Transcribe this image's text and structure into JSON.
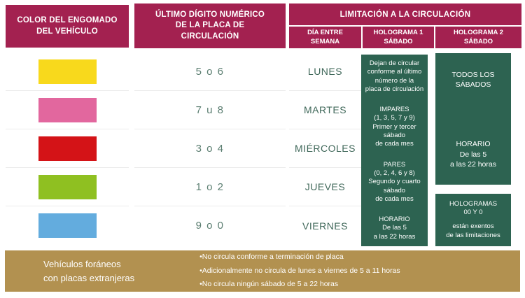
{
  "colors": {
    "header_maroon": "#A32150",
    "block_green": "#2D6351",
    "footer_tan": "#B29150",
    "digits_text": "#5B7E71",
    "day_text": "#40685A",
    "row_divider": "#ECECEC"
  },
  "header": {
    "col1_title": "COLOR DEL ENGOMADO\nDEL VEHÍCULO",
    "col2_title": "ÚLTIMO DÍGITO NUMÉRICO\nDE LA PLACA DE\nCIRCULACIÓN",
    "limitacion": {
      "title": "LIMITACIÓN A LA CIRCULACIÓN",
      "subcols": [
        "DÍA ENTRE\nSEMANA",
        "HOLOGRAMA 1\nSÁBADO",
        "HOLOGRAMA 2\nSÁBADO"
      ]
    }
  },
  "rows": [
    {
      "sticker_color": "amarillo",
      "hex": "#F8D91C",
      "digits": "5 o 6",
      "day": "LUNES"
    },
    {
      "sticker_color": "rosa",
      "hex": "#E2679E",
      "digits": "7 u 8",
      "day": "MARTES"
    },
    {
      "sticker_color": "rojo",
      "hex": "#D41317",
      "digits": "3 o 4",
      "day": "MIÉRCOLES"
    },
    {
      "sticker_color": "verde",
      "hex": "#8FC021",
      "digits": "1 o 2",
      "day": "JUEVES"
    },
    {
      "sticker_color": "azul",
      "hex": "#63ACDE",
      "digits": "9 o 0",
      "day": "VIERNES"
    }
  ],
  "hologram1": {
    "p1": "Dejan de circular\nconforme al último\nnúmero de la\nplaca de circulación",
    "p2": "IMPARES\n(1, 3, 5, 7 y 9)\nPrimer y tercer\nsábado\nde cada mes",
    "p3": "PARES\n(0, 2, 4, 6 y 8)\nSegundo y cuarto\nsábado\nde cada mes",
    "p4": "HORARIO\nDe las 5\na las 22 horas"
  },
  "hologram2": {
    "block1_top": "TODOS LOS\nSÁBADOS",
    "block1_bottom": "HORARIO\nDe las 5\na las 22 horas",
    "block2_top": "HOLOGRAMAS\n00 Y 0",
    "block2_bottom": "están exentos\nde las limitaciones"
  },
  "footer": {
    "left_text": "Vehículos foráneos\ncon placas extranjeras",
    "bullets": [
      "•No circula conforme a terminación de placa",
      "•Adicionalmente no circula de lunes a viernes de 5 a 11 horas",
      "•No circula ningún sábado de 5 a 22 horas"
    ]
  }
}
